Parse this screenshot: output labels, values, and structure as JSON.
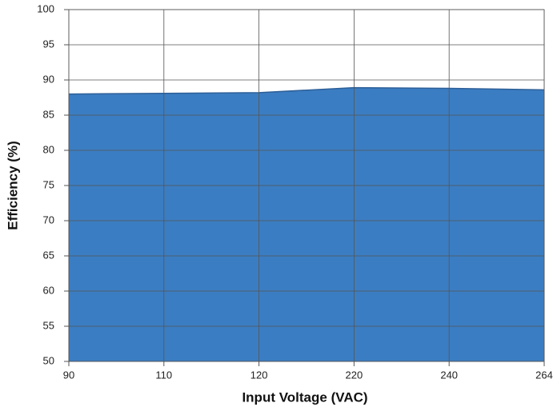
{
  "chart_data": {
    "type": "area",
    "x_label": "Input Voltage (VAC)",
    "y_label": "Efficiency (%)",
    "categories": [
      "90",
      "110",
      "120",
      "220",
      "240",
      "264"
    ],
    "values": [
      88.0,
      88.1,
      88.2,
      88.9,
      88.8,
      88.6
    ],
    "color": "#3b7dc2",
    "edge_color": "#2d5f98",
    "ylim": [
      50,
      100
    ],
    "yticks": [
      50,
      55,
      60,
      65,
      70,
      75,
      80,
      85,
      90,
      95,
      100
    ],
    "grid": true
  }
}
